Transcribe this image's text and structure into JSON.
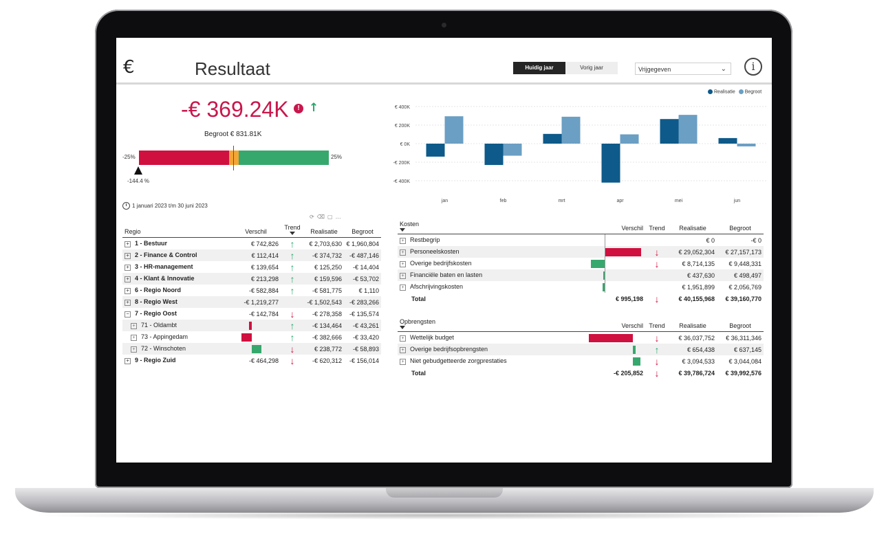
{
  "header": {
    "euro_symbol": "€",
    "title": "Resultaat",
    "toggle_current": "Huidig jaar",
    "toggle_previous": "Vorig jaar",
    "status_select": "Vrijgegeven",
    "info_label": "i"
  },
  "kpi": {
    "value": "-€ 369.24K",
    "alert": "!",
    "trend_arrow": "↑",
    "budget_text": "Begroot € 831.81K",
    "gauge_min": "-25%",
    "gauge_max": "25%",
    "pointer_label": "-144.4 %"
  },
  "period": "1 januari 2023 t/m 30 juni 2023",
  "regio_table": {
    "headers": [
      "Regio",
      "Verschil",
      "Trend",
      "Realisatie",
      "Begroot"
    ],
    "rows": [
      {
        "label": "1 - Bestuur",
        "verschil": "€ 742,826",
        "trend": "↑",
        "realisatie": "€ 2,703,630",
        "begroot": "€ 1,960,804"
      },
      {
        "label": "2 - Finance & Control",
        "verschil": "€ 112,414",
        "trend": "↑",
        "realisatie": "-€ 374,732",
        "begroot": "-€ 487,146"
      },
      {
        "label": "3 - HR-management",
        "verschil": "€ 139,654",
        "trend": "↑",
        "realisatie": "€ 125,250",
        "begroot": "-€ 14,404"
      },
      {
        "label": "4 - Klant & Innovatie",
        "verschil": "€ 213,298",
        "trend": "↑",
        "realisatie": "€ 159,596",
        "begroot": "-€ 53,702"
      },
      {
        "label": "6 - Regio Noord",
        "verschil": "-€ 582,884",
        "trend": "↑",
        "realisatie": "-€ 581,775",
        "begroot": "€ 1,110"
      },
      {
        "label": "8 - Regio West",
        "verschil": "-€ 1,219,277",
        "trend": "",
        "realisatie": "-€ 1,502,543",
        "begroot": "-€ 283,266"
      },
      {
        "label": "7 - Regio Oost",
        "verschil": "-€ 142,784",
        "trend": "↓",
        "realisatie": "-€ 278,358",
        "begroot": "-€ 135,574"
      },
      {
        "label": "71 - Oldambt",
        "verschil": "",
        "trend": "↑",
        "realisatie": "-€ 134,464",
        "begroot": "-€ 43,261"
      },
      {
        "label": "73 - Appingedam",
        "verschil": "",
        "trend": "↑",
        "realisatie": "-€ 382,666",
        "begroot": "-€ 33,420"
      },
      {
        "label": "72 - Winschoten",
        "verschil": "",
        "trend": "↓",
        "realisatie": "€ 238,772",
        "begroot": "-€ 58,893"
      },
      {
        "label": "9 - Regio Zuid",
        "verschil": "-€ 464,298",
        "trend": "↓",
        "realisatie": "-€ 620,312",
        "begroot": "-€ 156,014"
      }
    ]
  },
  "kosten_table": {
    "headers": [
      "Kosten",
      "Verschil",
      "Trend",
      "Realisatie",
      "Begroot"
    ],
    "rows": [
      {
        "label": "Restbegrip",
        "verschil": "",
        "trend": "",
        "realisatie": "€ 0",
        "begroot": "-€ 0"
      },
      {
        "label": "Personeelskosten",
        "verschil": "",
        "trend": "↓",
        "realisatie": "€ 29,052,304",
        "begroot": "€ 27,157,173"
      },
      {
        "label": "Overige bedrijfskosten",
        "verschil": "",
        "trend": "↓",
        "realisatie": "€ 8,714,135",
        "begroot": "€ 9,448,331"
      },
      {
        "label": "Financiële baten en lasten",
        "verschil": "",
        "trend": "",
        "realisatie": "€ 437,630",
        "begroot": "€ 498,497"
      },
      {
        "label": "Afschrijvingskosten",
        "verschil": "",
        "trend": "",
        "realisatie": "€ 1,951,899",
        "begroot": "€ 2,056,769"
      }
    ],
    "total": {
      "label": "Total",
      "verschil": "€ 995,198",
      "trend": "↓",
      "realisatie": "€ 40,155,968",
      "begroot": "€ 39,160,770"
    }
  },
  "opbrengsten_table": {
    "headers": [
      "Opbrengsten",
      "Verschil",
      "Trend",
      "Realisatie",
      "Begroot"
    ],
    "rows": [
      {
        "label": "Wettelijk budget",
        "verschil": "",
        "trend": "↓",
        "realisatie": "€ 36,037,752",
        "begroot": "€ 36,311,346"
      },
      {
        "label": "Overige bedrijfsopbrengsten",
        "verschil": "",
        "trend": "↑",
        "realisatie": "€ 654,438",
        "begroot": "€ 637,145"
      },
      {
        "label": "Niet gebudgetteerde zorgprestaties",
        "verschil": "",
        "trend": "↓",
        "realisatie": "€ 3,094,533",
        "begroot": "€ 3,044,084"
      }
    ],
    "total": {
      "label": "Total",
      "verschil": "-€ 205,852",
      "trend": "↓",
      "realisatie": "€ 39,786,724",
      "begroot": "€ 39,992,576"
    }
  },
  "colors": {
    "negative": "#d0103f",
    "positive": "#37a86d",
    "warning": "#f4a534",
    "realisatie": "#0e5a8a",
    "begroot": "#6b9fc4"
  },
  "chart_data": {
    "type": "bar",
    "categories": [
      "jan",
      "feb",
      "mrt",
      "apr",
      "mei",
      "jun"
    ],
    "series": [
      {
        "name": "Realisatie",
        "values": [
          -140000,
          -230000,
          105000,
          -420000,
          265000,
          60000
        ]
      },
      {
        "name": "Begroot",
        "values": [
          295000,
          -130000,
          290000,
          100000,
          310000,
          -30000
        ]
      }
    ],
    "yticks": [
      "€ 400K",
      "€ 200K",
      "€ 0K",
      "-€ 200K",
      "-€ 400K"
    ],
    "ylim": [
      -400000,
      400000
    ],
    "legend_position": "top-right",
    "grid": true
  }
}
